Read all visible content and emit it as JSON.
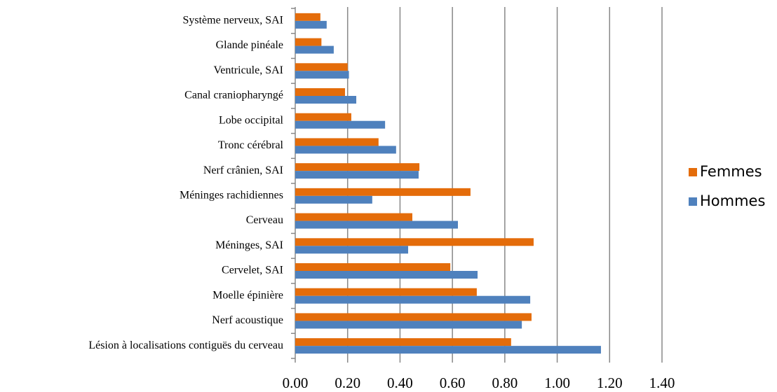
{
  "chart_data": {
    "type": "barh",
    "categories": [
      "Système nerveux, SAI",
      "Glande pinéale",
      "Ventricule, SAI",
      "Canal craniopharyngé",
      "Lobe occipital",
      "Tronc cérébral",
      "Nerf crânien, SAI",
      "Méninges rachidiennes",
      "Cerveau",
      "Méninges, SAI",
      "Cervelet, SAI",
      "Moelle épinière",
      "Nerf acoustique",
      "Lésion à localisations contiguës du cerveau"
    ],
    "series": [
      {
        "name": "Femmes",
        "color": "#e46c0a",
        "values": [
          0.096,
          0.1,
          0.2,
          0.19,
          0.214,
          0.318,
          0.474,
          0.669,
          0.447,
          0.91,
          0.592,
          0.693,
          0.902,
          0.824
        ]
      },
      {
        "name": "Hommes",
        "color": "#4f81bd",
        "values": [
          0.12,
          0.147,
          0.205,
          0.233,
          0.343,
          0.385,
          0.471,
          0.294,
          0.621,
          0.431,
          0.696,
          0.897,
          0.865,
          1.167
        ]
      }
    ],
    "xlim": [
      0,
      1.4
    ],
    "xticks": [
      {
        "value": 0,
        "label": "0.00"
      },
      {
        "value": 0.2,
        "label": "0.20"
      },
      {
        "value": 0.4,
        "label": "0.40"
      },
      {
        "value": 0.6,
        "label": "0.60"
      },
      {
        "value": 0.8,
        "label": "0.80"
      },
      {
        "value": 1.0,
        "label": "1.00"
      },
      {
        "value": 1.2,
        "label": "1.20"
      },
      {
        "value": 1.4,
        "label": "1.40"
      }
    ],
    "grid": true,
    "legend": "right"
  }
}
